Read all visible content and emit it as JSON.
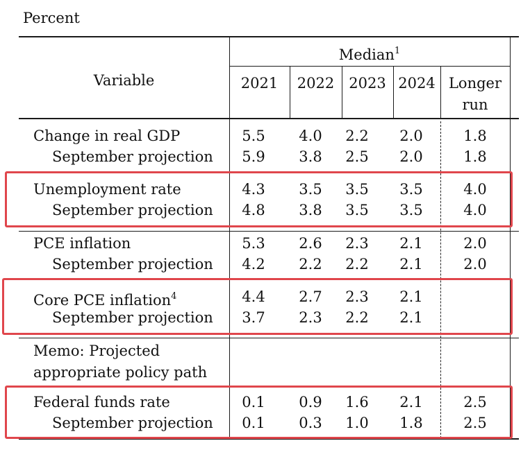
{
  "unit_label": "Percent",
  "header": {
    "median_label": "Median",
    "median_note": "1",
    "variable_label": "Variable",
    "years": [
      "2021",
      "2022",
      "2023",
      "2024"
    ],
    "longer_run_line1": "Longer",
    "longer_run_line2": "run"
  },
  "rows": [
    {
      "label": "Change in real GDP",
      "values": [
        "5.5",
        "4.0",
        "2.2",
        "2.0",
        "1.8"
      ]
    },
    {
      "label": "September projection",
      "values": [
        "5.9",
        "3.8",
        "2.5",
        "2.0",
        "1.8"
      ]
    },
    {
      "label": "Unemployment rate",
      "values": [
        "4.3",
        "3.5",
        "3.5",
        "3.5",
        "4.0"
      ]
    },
    {
      "label": "September projection",
      "values": [
        "4.8",
        "3.8",
        "3.5",
        "3.5",
        "4.0"
      ]
    },
    {
      "label": "PCE inflation",
      "values": [
        "5.3",
        "2.6",
        "2.3",
        "2.1",
        "2.0"
      ]
    },
    {
      "label": "September projection",
      "values": [
        "4.2",
        "2.2",
        "2.2",
        "2.1",
        "2.0"
      ]
    },
    {
      "label": "Core PCE inflation",
      "note": "4",
      "values": [
        "4.4",
        "2.7",
        "2.3",
        "2.1",
        ""
      ]
    },
    {
      "label": "September projection",
      "values": [
        "3.7",
        "2.3",
        "2.2",
        "2.1",
        ""
      ]
    },
    {
      "label": "Federal funds rate",
      "values": [
        "0.1",
        "0.9",
        "1.6",
        "2.1",
        "2.5"
      ]
    },
    {
      "label": "September projection",
      "values": [
        "0.1",
        "0.3",
        "1.0",
        "1.8",
        "2.5"
      ]
    }
  ],
  "memo": {
    "line1": "Memo: Projected",
    "line2": "appropriate policy path"
  },
  "highlight_color": "#e0464c"
}
